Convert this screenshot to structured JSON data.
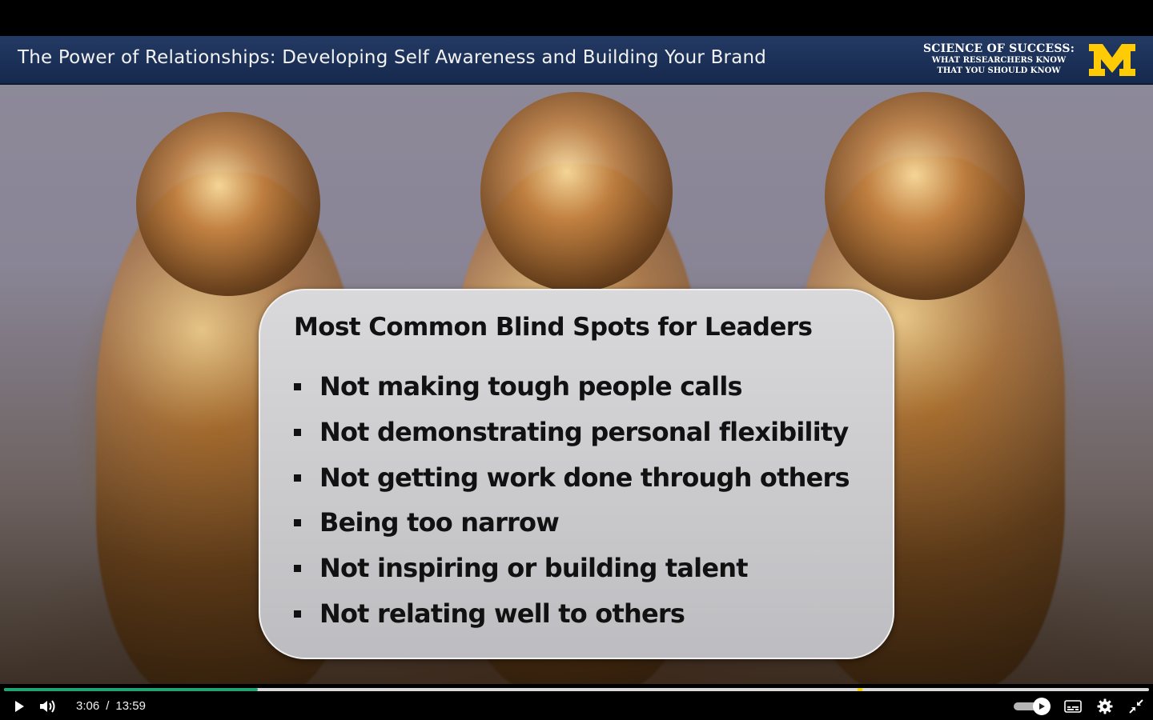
{
  "video": {
    "title": "The Power of Relationships: Developing Self Awareness and Building Your Brand",
    "brand": {
      "line1": "SCIENCE OF SUCCESS:",
      "line2": "WHAT RESEARCHERS KNOW",
      "line3": "THAT YOU SHOULD KNOW",
      "logo_letter": "M",
      "logo_color": "#ffcb05"
    },
    "slide": {
      "heading": "Most Common Blind Spots for Leaders",
      "items": [
        "Not making tough people calls",
        "Not demonstrating personal flexibility",
        "Not getting work done through others",
        "Being too narrow",
        "Not inspiring or building talent",
        "Not relating well to others"
      ]
    }
  },
  "controls": {
    "current_time": "3:06",
    "separator": "/",
    "duration": "13:59",
    "progress_fraction": 0.222,
    "progress_color": "#1fa372",
    "icons": {
      "play": "play-icon",
      "volume": "volume-icon",
      "autoplay": "autoplay-toggle",
      "captions": "captions-icon",
      "settings": "gear-icon",
      "exit_fullscreen": "exit-fullscreen-icon"
    }
  }
}
